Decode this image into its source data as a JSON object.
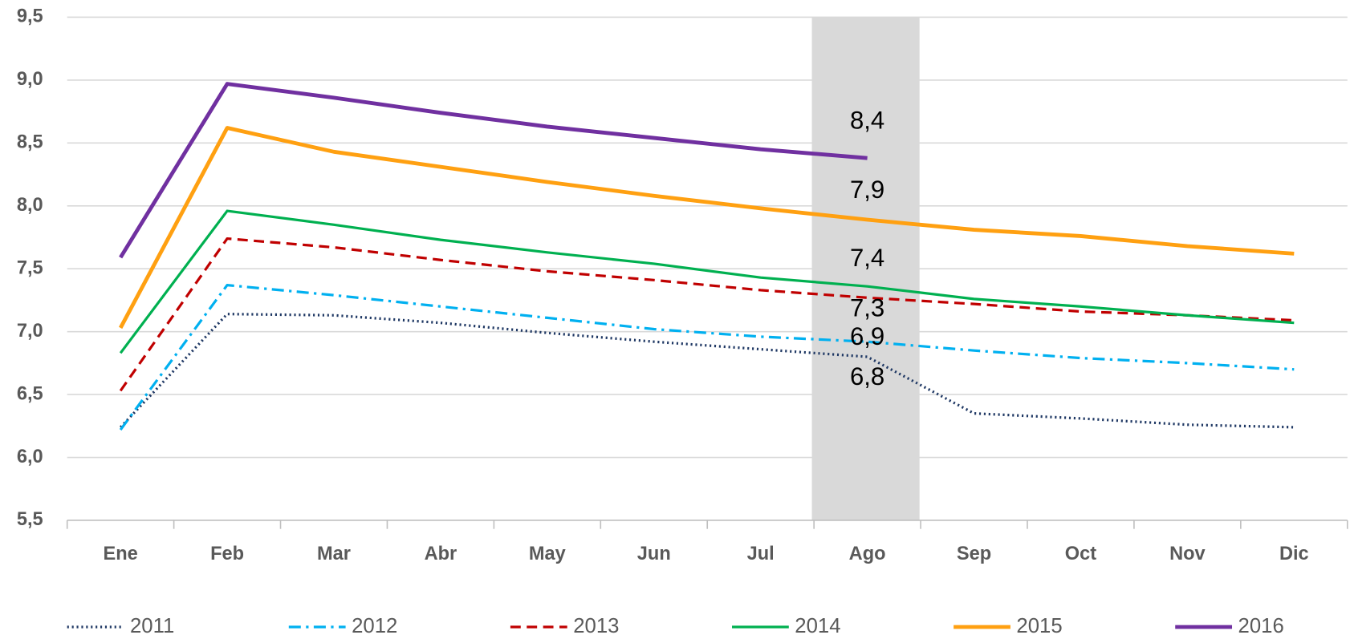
{
  "chart_data": {
    "type": "line",
    "categories": [
      "Ene",
      "Feb",
      "Mar",
      "Abr",
      "May",
      "Jun",
      "Jul",
      "Ago",
      "Sep",
      "Oct",
      "Nov",
      "Dic"
    ],
    "ylim": [
      5.5,
      9.5
    ],
    "yticks": [
      {
        "value": 5.5,
        "label": "5,5"
      },
      {
        "value": 6,
        "label": "6,0"
      },
      {
        "value": 6.5,
        "label": "6,5"
      },
      {
        "value": 7,
        "label": "7,0"
      },
      {
        "value": 7.5,
        "label": "7,5"
      },
      {
        "value": 8,
        "label": "8,0"
      },
      {
        "value": 8.5,
        "label": "8,5"
      },
      {
        "value": 9,
        "label": "9,0"
      },
      {
        "value": 9.5,
        "label": "9,5"
      }
    ],
    "grid": true,
    "series": [
      {
        "name": "2011",
        "color": "#1f3864",
        "dash": "dotted",
        "values": [
          6.24,
          7.14,
          7.13,
          7.07,
          6.99,
          6.92,
          6.86,
          6.8,
          6.35,
          6.31,
          6.26,
          6.24
        ],
        "value_labels": [
          null,
          null,
          null,
          null,
          null,
          null,
          null,
          "6,8",
          null,
          null,
          null,
          null
        ]
      },
      {
        "name": "2012",
        "color": "#00b0f0",
        "dash": "dashdot",
        "values": [
          6.22,
          7.37,
          7.29,
          7.2,
          7.11,
          7.02,
          6.96,
          6.92,
          6.85,
          6.79,
          6.75,
          6.7
        ],
        "value_labels": [
          null,
          null,
          null,
          null,
          null,
          null,
          null,
          "6,9",
          null,
          null,
          null,
          null
        ]
      },
      {
        "name": "2013",
        "color": "#c00000",
        "dash": "dashed",
        "values": [
          6.53,
          7.74,
          7.67,
          7.57,
          7.48,
          7.41,
          7.33,
          7.27,
          7.22,
          7.16,
          7.13,
          7.09
        ],
        "value_labels": [
          null,
          null,
          null,
          null,
          null,
          null,
          null,
          "7,3",
          null,
          null,
          null,
          null
        ]
      },
      {
        "name": "2014",
        "color": "#00b050",
        "dash": "solid",
        "values": [
          6.83,
          7.96,
          7.85,
          7.73,
          7.63,
          7.54,
          7.43,
          7.36,
          7.26,
          7.2,
          7.13,
          7.07
        ],
        "value_labels": [
          null,
          null,
          null,
          null,
          null,
          null,
          null,
          "7,4",
          null,
          null,
          null,
          null
        ]
      },
      {
        "name": "2015",
        "color": "#ffa011",
        "dash": "solid",
        "values": [
          7.03,
          8.62,
          8.43,
          8.31,
          8.19,
          8.08,
          7.98,
          7.89,
          7.81,
          7.76,
          7.68,
          7.62
        ],
        "value_labels": [
          null,
          null,
          null,
          null,
          null,
          null,
          null,
          "7,9",
          null,
          null,
          null,
          null
        ]
      },
      {
        "name": "2016",
        "color": "#7030a0",
        "dash": "solid",
        "values": [
          7.59,
          8.97,
          8.86,
          8.74,
          8.63,
          8.54,
          8.45,
          8.38,
          null,
          null,
          null,
          null
        ],
        "value_labels": [
          null,
          null,
          null,
          null,
          null,
          null,
          null,
          "8,4",
          null,
          null,
          null,
          null
        ]
      }
    ]
  }
}
